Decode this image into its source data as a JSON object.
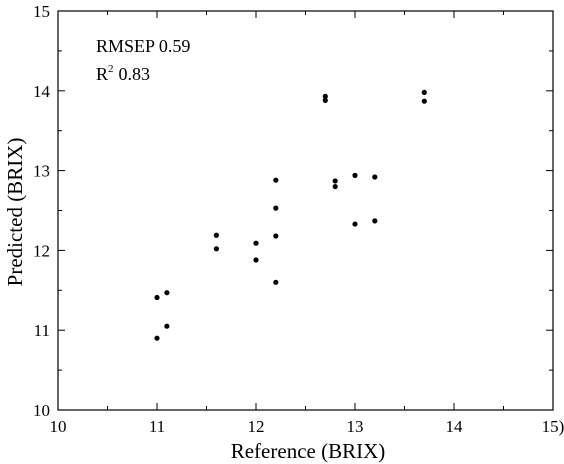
{
  "chart_data": {
    "type": "scatter",
    "xlabel": "Reference (BRIX)",
    "ylabel": "Predicted (BRIX)",
    "xlim": [
      10,
      15
    ],
    "ylim": [
      10,
      15
    ],
    "x_ticks": [
      "10",
      "11",
      "12",
      "13",
      "14",
      "15)"
    ],
    "y_ticks": [
      "10",
      "11",
      "12",
      "13",
      "14",
      "15"
    ],
    "grid": false,
    "annotations": {
      "rmsep_label": "RMSEP",
      "rmsep_value": "0.59",
      "r2_base": "R",
      "r2_exp": "2",
      "r2_value": "0.83"
    },
    "series": [
      {
        "points": [
          {
            "x": 11.0,
            "y": 11.41
          },
          {
            "x": 11.0,
            "y": 10.9
          },
          {
            "x": 11.1,
            "y": 11.47
          },
          {
            "x": 11.1,
            "y": 11.05
          },
          {
            "x": 11.6,
            "y": 12.19
          },
          {
            "x": 11.6,
            "y": 12.02
          },
          {
            "x": 12.0,
            "y": 12.09
          },
          {
            "x": 12.0,
            "y": 11.88
          },
          {
            "x": 12.2,
            "y": 12.88
          },
          {
            "x": 12.2,
            "y": 12.53
          },
          {
            "x": 12.2,
            "y": 12.18
          },
          {
            "x": 12.2,
            "y": 11.6
          },
          {
            "x": 12.7,
            "y": 13.93
          },
          {
            "x": 12.7,
            "y": 13.88
          },
          {
            "x": 12.8,
            "y": 12.87
          },
          {
            "x": 12.8,
            "y": 12.8
          },
          {
            "x": 13.0,
            "y": 12.94
          },
          {
            "x": 13.0,
            "y": 12.33
          },
          {
            "x": 13.2,
            "y": 12.92
          },
          {
            "x": 13.2,
            "y": 12.37
          },
          {
            "x": 13.7,
            "y": 13.98
          },
          {
            "x": 13.7,
            "y": 13.87
          }
        ]
      }
    ]
  }
}
